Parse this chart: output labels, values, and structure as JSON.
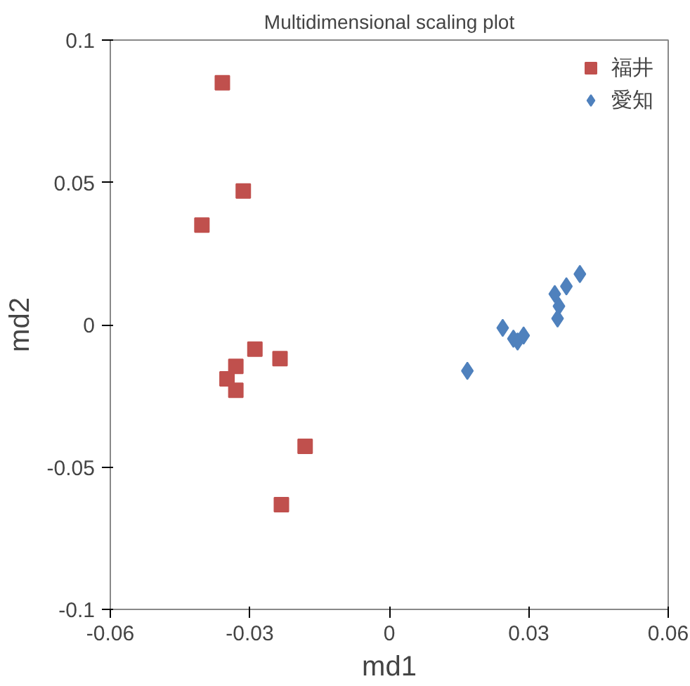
{
  "chart_data": {
    "type": "scatter",
    "title": "Multidimensional scaling plot",
    "xlabel": "md1",
    "ylabel": "md2",
    "xlim": [
      -0.06,
      0.06
    ],
    "xticks": [
      -0.06,
      -0.03,
      0,
      0.03,
      0.06
    ],
    "ylim": [
      -0.1,
      0.1
    ],
    "yticks": [
      -0.1,
      -0.05,
      0,
      0.05,
      0.1
    ],
    "grid": false,
    "legend": "top right",
    "series": [
      {
        "name": "福井",
        "color": "#c0504d",
        "marker": "square",
        "x": [
          -0.0359,
          -0.0314,
          -0.0403,
          -0.0289,
          -0.033,
          -0.0349,
          -0.033,
          -0.0235,
          -0.0181,
          -0.0232
        ],
        "values": [
          0.085,
          0.047,
          0.035,
          -0.0086,
          -0.0146,
          -0.019,
          -0.023,
          -0.0119,
          -0.0427,
          -0.0632
        ]
      },
      {
        "name": "愛知",
        "color": "#4f81bd",
        "marker": "diamond",
        "x": [
          0.0168,
          0.0244,
          0.0267,
          0.0276,
          0.0289,
          0.0356,
          0.0365,
          0.0362,
          0.0381,
          0.041
        ],
        "values": [
          -0.0162,
          -0.0011,
          -0.0049,
          -0.0059,
          -0.0038,
          0.0108,
          0.0065,
          0.0022,
          0.0135,
          0.0178
        ]
      }
    ]
  }
}
